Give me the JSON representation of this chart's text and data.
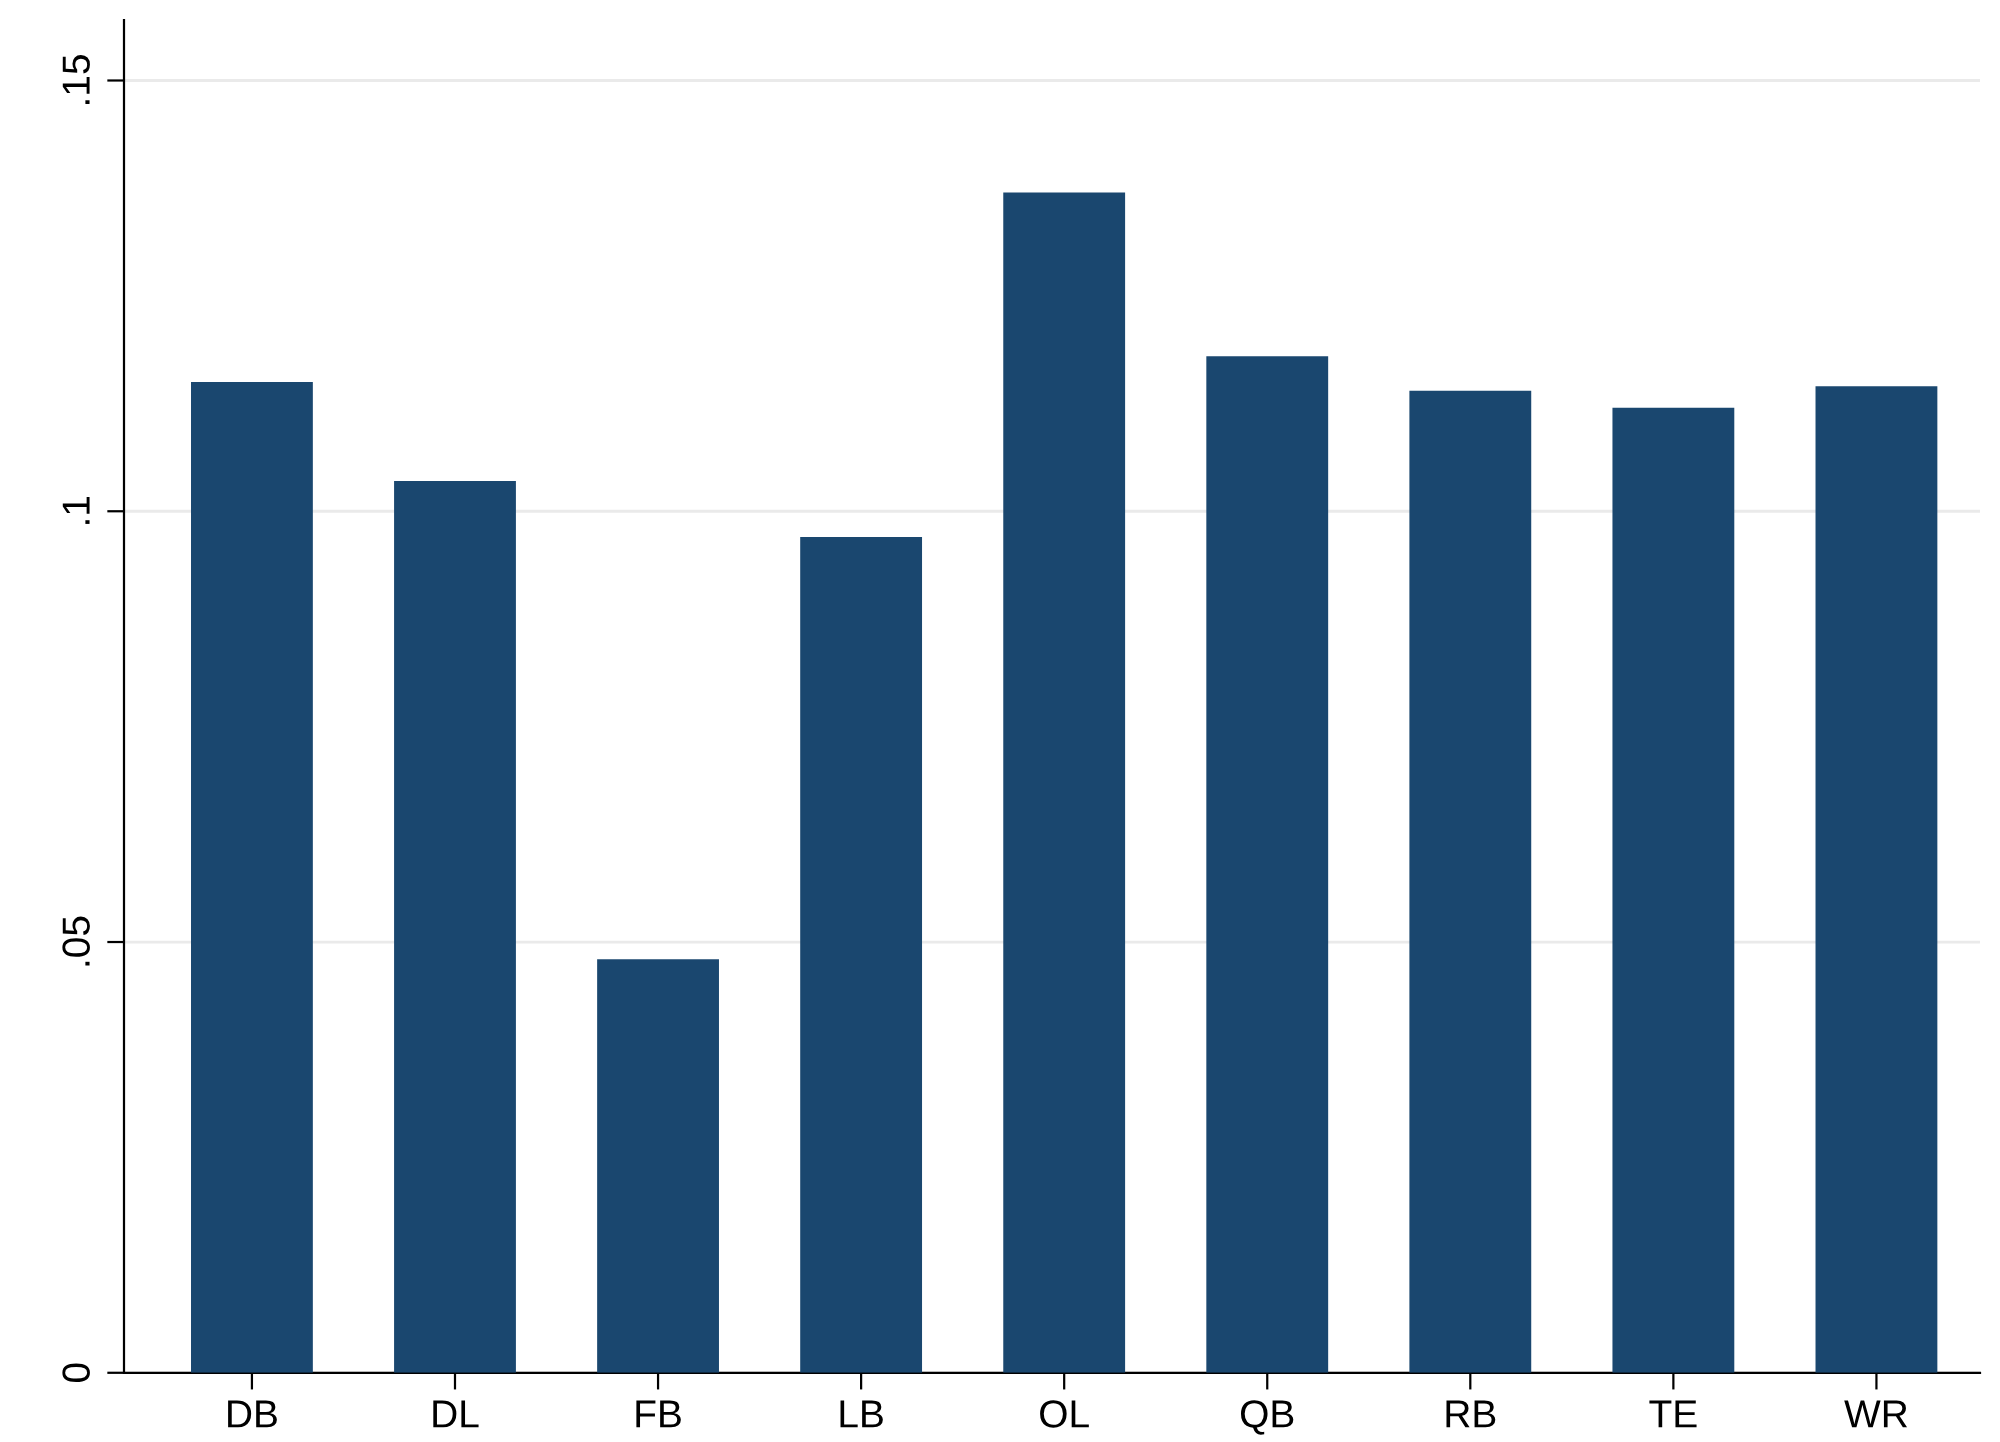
{
  "chart_data": {
    "type": "bar",
    "categories": [
      "DB",
      "DL",
      "FB",
      "LB",
      "OL",
      "QB",
      "RB",
      "TE",
      "WR"
    ],
    "values": [
      0.115,
      0.1035,
      0.048,
      0.097,
      0.137,
      0.118,
      0.114,
      0.112,
      0.1145
    ],
    "color": "#1a476f",
    "ylim": [
      0,
      0.157
    ],
    "yticks": [
      {
        "value": 0,
        "label": "0"
      },
      {
        "value": 0.05,
        "label": ".05"
      },
      {
        "value": 0.1,
        "label": ".1"
      },
      {
        "value": 0.15,
        "label": ".15"
      }
    ],
    "grid": "y"
  }
}
